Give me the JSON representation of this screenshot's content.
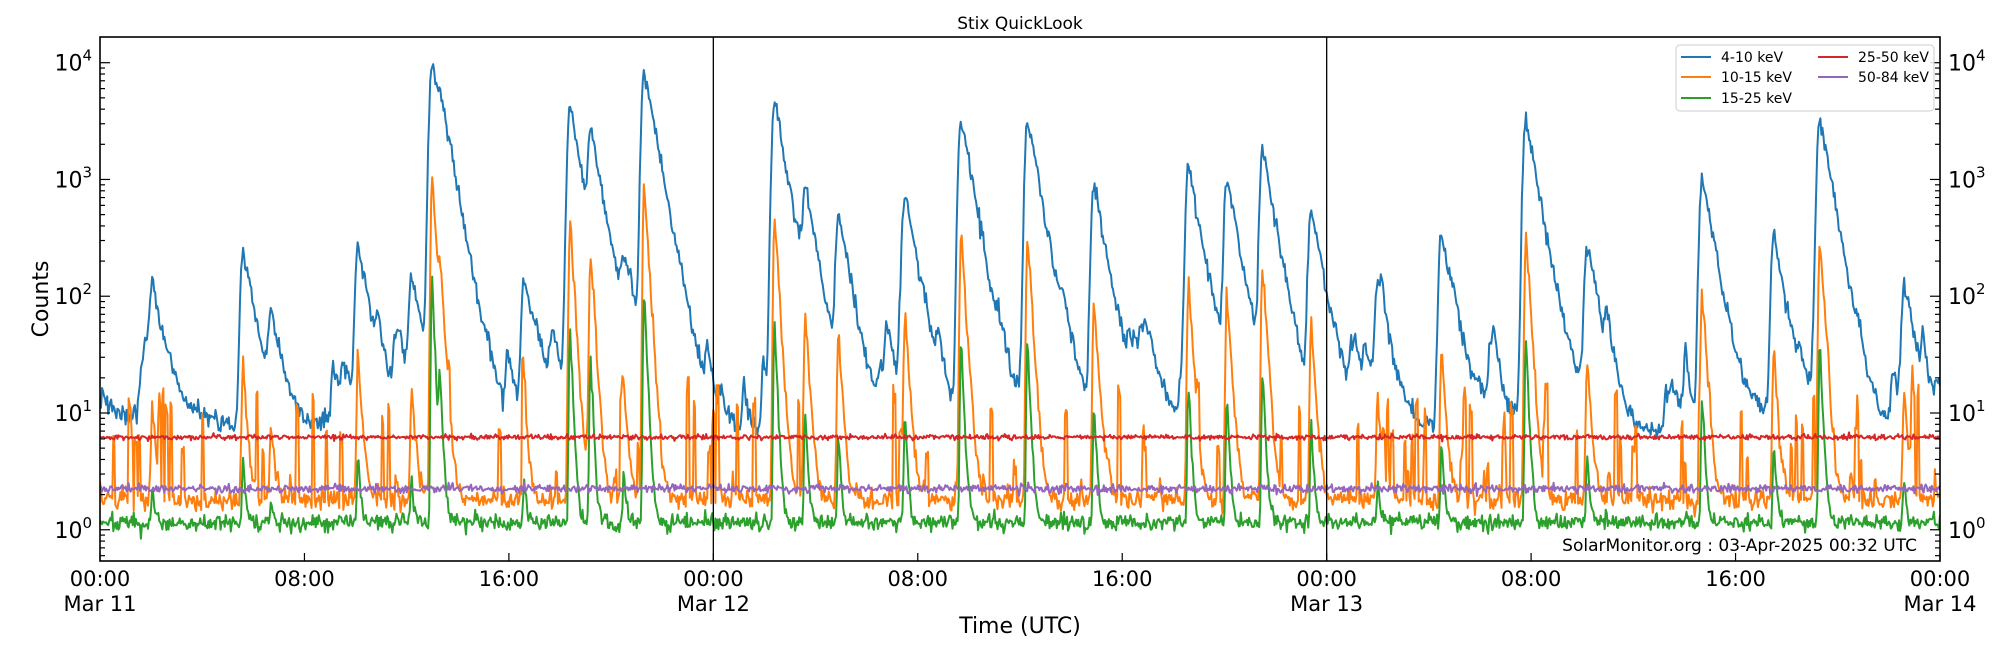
{
  "chart_data": {
    "type": "line",
    "title": "Stix QuickLook",
    "xlabel": "Time (UTC)",
    "ylabel": "Counts",
    "yscale": "log",
    "ylim": [
      0.54,
      16600
    ],
    "xlim_hours": [
      0,
      72
    ],
    "yticks": [
      1,
      10,
      100,
      1000,
      10000
    ],
    "xticks": [
      {
        "hours": 0,
        "time": "00:00",
        "date": "Mar 11"
      },
      {
        "hours": 8,
        "time": "08:00",
        "date": ""
      },
      {
        "hours": 16,
        "time": "16:00",
        "date": ""
      },
      {
        "hours": 24,
        "time": "00:00",
        "date": "Mar 12"
      },
      {
        "hours": 32,
        "time": "08:00",
        "date": ""
      },
      {
        "hours": 40,
        "time": "16:00",
        "date": ""
      },
      {
        "hours": 48,
        "time": "00:00",
        "date": "Mar 13"
      },
      {
        "hours": 56,
        "time": "08:00",
        "date": ""
      },
      {
        "hours": 64,
        "time": "16:00",
        "date": ""
      },
      {
        "hours": 72,
        "time": "00:00",
        "date": "Mar 14"
      }
    ],
    "day_boundaries_hours": [
      24,
      48
    ],
    "legend_position": "top-right",
    "annotation": "SolarMonitor.org : 03-Apr-2025 00:32 UTC",
    "series": [
      {
        "name": "4-10 keV",
        "color": "#1f77b4",
        "baseline": 10
      },
      {
        "name": "10-15 keV",
        "color": "#ff7f0e",
        "baseline": 1.8
      },
      {
        "name": "15-25 keV",
        "color": "#2ca02c",
        "baseline": 1.15
      },
      {
        "name": "25-50 keV",
        "color": "#d62728",
        "baseline": 6.2
      },
      {
        "name": "50-84 keV",
        "color": "#9467bd",
        "baseline": 2.25
      }
    ],
    "flares_4_10keV": [
      {
        "hours": 2.05,
        "peak": 100
      },
      {
        "hours": 5.6,
        "peak": 240
      },
      {
        "hours": 6.7,
        "peak": 60
      },
      {
        "hours": 10.1,
        "peak": 270
      },
      {
        "hours": 12.2,
        "peak": 140
      },
      {
        "hours": 13.0,
        "peak": 10500
      },
      {
        "hours": 13.3,
        "peak": 1600
      },
      {
        "hours": 16.6,
        "peak": 130
      },
      {
        "hours": 18.4,
        "peak": 4200
      },
      {
        "hours": 19.2,
        "peak": 2300
      },
      {
        "hours": 20.5,
        "peak": 170
      },
      {
        "hours": 21.3,
        "peak": 9000
      },
      {
        "hours": 26.4,
        "peak": 4600
      },
      {
        "hours": 27.6,
        "peak": 700
      },
      {
        "hours": 28.9,
        "peak": 450
      },
      {
        "hours": 31.5,
        "peak": 720
      },
      {
        "hours": 33.7,
        "peak": 3200
      },
      {
        "hours": 36.3,
        "peak": 3200
      },
      {
        "hours": 38.9,
        "peak": 900
      },
      {
        "hours": 42.6,
        "peak": 1300
      },
      {
        "hours": 44.1,
        "peak": 1000
      },
      {
        "hours": 45.5,
        "peak": 1800
      },
      {
        "hours": 47.4,
        "peak": 550
      },
      {
        "hours": 50.0,
        "peak": 120
      },
      {
        "hours": 52.5,
        "peak": 330
      },
      {
        "hours": 55.8,
        "peak": 3300
      },
      {
        "hours": 58.2,
        "peak": 260
      },
      {
        "hours": 62.7,
        "peak": 1050
      },
      {
        "hours": 65.5,
        "peak": 320
      },
      {
        "hours": 67.3,
        "peak": 3300
      },
      {
        "hours": 70.6,
        "peak": 120
      }
    ]
  }
}
